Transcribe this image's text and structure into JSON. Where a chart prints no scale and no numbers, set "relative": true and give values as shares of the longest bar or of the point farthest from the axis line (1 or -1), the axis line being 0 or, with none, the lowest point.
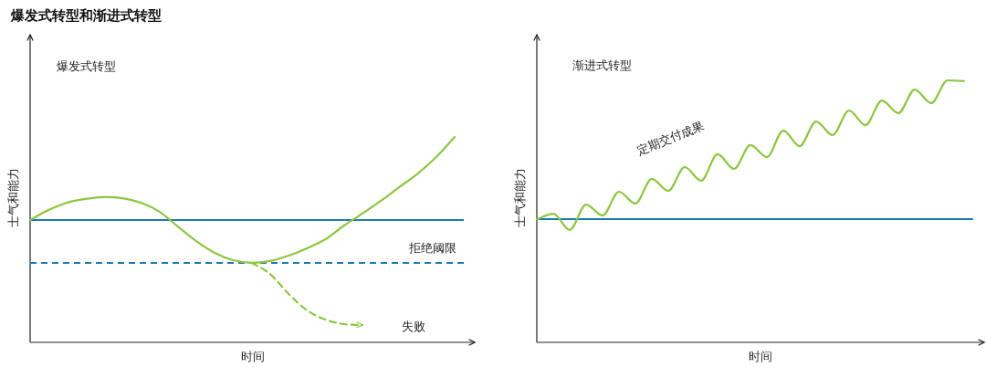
{
  "chart_data": [
    {
      "type": "line",
      "title": "爆发式转型和渐进式转型",
      "xlabel": "时间",
      "ylabel": "士气和能力",
      "relative": true,
      "categories": [
        null,
        null,
        null,
        null,
        null,
        null,
        null,
        null,
        null,
        null,
        null,
        null,
        null,
        null,
        null,
        null,
        null,
        null,
        null,
        null,
        null,
        null,
        null,
        null
      ],
      "series": [
        {
          "color": "#8dc63f",
          "values": [
            0.596,
            0.644,
            0.68,
            0.698,
            0.707,
            0.702,
            0.68,
            0.636,
            0.564,
            0.493,
            0.436,
            0.4,
            0.387,
            0.396,
            0.422,
            0.458,
            0.502,
            0.569,
            0.627,
            0.689,
            0.756,
            0.822,
            0.902,
            1
          ]
        },
        {
          "color": "#8dc63f",
          "line_style": "dashed",
          "values": [
            null,
            null,
            null,
            null,
            null,
            null,
            null,
            null,
            null,
            null,
            null,
            null,
            0.387,
            0.333,
            0.236,
            0.156,
            0.111,
            0.089,
            0.084,
            null,
            null,
            null,
            null,
            null
          ]
        }
      ],
      "ref_lines": [
        {
          "axis": "y",
          "value": 0.596,
          "color": "#1a7bb0"
        },
        {
          "axis": "y",
          "value": 0.387,
          "color": "#1a7bb0",
          "line_style": "dashed",
          "label": "拒绝阈限"
        }
      ],
      "annotations": [
        "爆发式转型",
        "失败"
      ]
    },
    {
      "type": "line",
      "xlabel": "时间",
      "ylabel": "士气和能力",
      "relative": true,
      "categories": [
        null,
        null,
        null,
        null,
        null,
        null,
        null,
        null,
        null,
        null,
        null,
        null,
        null,
        null,
        null,
        null,
        null,
        null,
        null,
        null,
        null,
        null,
        null,
        null,
        null,
        null,
        null
      ],
      "series": [
        {
          "color": "#8dc63f",
          "values": [
            0.47,
            0.491,
            0.429,
            0.526,
            0.484,
            0.575,
            0.53,
            0.624,
            0.578,
            0.669,
            0.617,
            0.718,
            0.662,
            0.753,
            0.707,
            0.808,
            0.749,
            0.843,
            0.791,
            0.885,
            0.829,
            0.923,
            0.875,
            0.965,
            0.913,
            1,
            0.997
          ]
        }
      ],
      "ref_lines": [
        {
          "axis": "y",
          "value": 0.47,
          "color": "#1a7bb0"
        }
      ],
      "annotations": [
        "渐进式转型",
        "定期交付成果"
      ]
    }
  ]
}
